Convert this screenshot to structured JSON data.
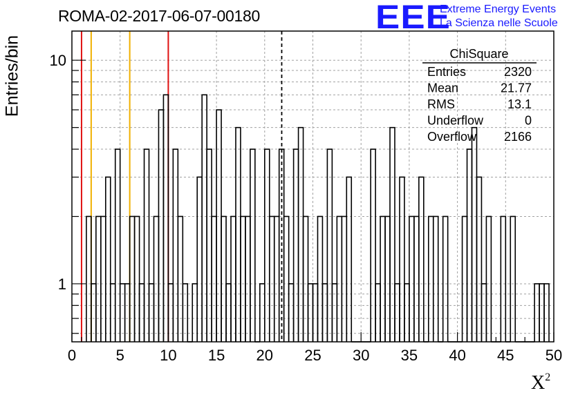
{
  "header": {
    "run_title": "ROMA-02-2017-06-07-00180",
    "logo_text": "EEE",
    "tagline_1": "Extreme Energy Events",
    "tagline_2": "La Scienza nelle Scuole"
  },
  "stats_box": {
    "name": "ChiSquare",
    "rows": [
      {
        "label": "Entries",
        "value": "2320"
      },
      {
        "label": "Mean",
        "value": "21.77"
      },
      {
        "label": "RMS",
        "value": "13.1"
      },
      {
        "label": "Underflow",
        "value": "0"
      },
      {
        "label": "Overflow",
        "value": "2166"
      }
    ]
  },
  "chart_data": {
    "type": "histogram",
    "xlabel": "X",
    "xlabel_superscript": "2",
    "ylabel": "Entries/bin",
    "xlim": [
      0,
      50
    ],
    "ylim": [
      0.55,
      13.5
    ],
    "yscale": "log",
    "grid": true,
    "legend_position": "top-right",
    "bin_width": 0.5,
    "x_ticks": [
      "0",
      "5",
      "10",
      "15",
      "20",
      "25",
      "30",
      "35",
      "40",
      "45",
      "50"
    ],
    "y_ticks": [
      "1",
      "10"
    ],
    "bins": [
      {
        "x": 1.5,
        "y": 2
      },
      {
        "x": 2.0,
        "y": 1
      },
      {
        "x": 2.5,
        "y": 2
      },
      {
        "x": 3.0,
        "y": 2
      },
      {
        "x": 3.5,
        "y": 3
      },
      {
        "x": 4.0,
        "y": 1
      },
      {
        "x": 4.5,
        "y": 4
      },
      {
        "x": 5.0,
        "y": 1
      },
      {
        "x": 5.5,
        "y": 1
      },
      {
        "x": 6.0,
        "y": 2
      },
      {
        "x": 6.5,
        "y": 2
      },
      {
        "x": 7.0,
        "y": 1
      },
      {
        "x": 7.5,
        "y": 4
      },
      {
        "x": 8.0,
        "y": 1
      },
      {
        "x": 8.5,
        "y": 2
      },
      {
        "x": 9.0,
        "y": 6
      },
      {
        "x": 9.5,
        "y": 7
      },
      {
        "x": 10.0,
        "y": 1
      },
      {
        "x": 10.5,
        "y": 4
      },
      {
        "x": 11.0,
        "y": 2
      },
      {
        "x": 11.5,
        "y": 1
      },
      {
        "x": 12.0,
        "y": 0.55
      },
      {
        "x": 12.5,
        "y": 1
      },
      {
        "x": 13.0,
        "y": 3
      },
      {
        "x": 13.5,
        "y": 7
      },
      {
        "x": 14.0,
        "y": 4
      },
      {
        "x": 14.5,
        "y": 2
      },
      {
        "x": 15.0,
        "y": 6
      },
      {
        "x": 15.5,
        "y": 2
      },
      {
        "x": 16.0,
        "y": 1
      },
      {
        "x": 16.5,
        "y": 2
      },
      {
        "x": 17.0,
        "y": 5
      },
      {
        "x": 17.5,
        "y": 2
      },
      {
        "x": 18.0,
        "y": 2
      },
      {
        "x": 18.5,
        "y": 4
      },
      {
        "x": 19.0,
        "y": 0.55
      },
      {
        "x": 19.5,
        "y": 1
      },
      {
        "x": 20.0,
        "y": 4
      },
      {
        "x": 20.5,
        "y": 2
      },
      {
        "x": 21.0,
        "y": 2
      },
      {
        "x": 21.5,
        "y": 4
      },
      {
        "x": 22.0,
        "y": 2
      },
      {
        "x": 22.5,
        "y": 1
      },
      {
        "x": 23.0,
        "y": 4
      },
      {
        "x": 23.5,
        "y": 5
      },
      {
        "x": 24.0,
        "y": 2
      },
      {
        "x": 24.5,
        "y": 1
      },
      {
        "x": 25.0,
        "y": 1
      },
      {
        "x": 25.5,
        "y": 2
      },
      {
        "x": 26.0,
        "y": 1
      },
      {
        "x": 26.5,
        "y": 4
      },
      {
        "x": 27.0,
        "y": 1
      },
      {
        "x": 27.5,
        "y": 2
      },
      {
        "x": 28.0,
        "y": 2
      },
      {
        "x": 28.5,
        "y": 3
      },
      {
        "x": 29.0,
        "y": 0.55
      },
      {
        "x": 29.5,
        "y": 0.55
      },
      {
        "x": 30.0,
        "y": 0.55
      },
      {
        "x": 30.5,
        "y": 0.55
      },
      {
        "x": 31.0,
        "y": 4
      },
      {
        "x": 31.5,
        "y": 1
      },
      {
        "x": 32.0,
        "y": 2
      },
      {
        "x": 32.5,
        "y": 2
      },
      {
        "x": 33.0,
        "y": 5
      },
      {
        "x": 33.5,
        "y": 1
      },
      {
        "x": 34.0,
        "y": 3
      },
      {
        "x": 34.5,
        "y": 1
      },
      {
        "x": 35.0,
        "y": 2
      },
      {
        "x": 35.5,
        "y": 2
      },
      {
        "x": 36.0,
        "y": 3
      },
      {
        "x": 36.5,
        "y": 0.55
      },
      {
        "x": 37.0,
        "y": 2
      },
      {
        "x": 37.5,
        "y": 2
      },
      {
        "x": 38.0,
        "y": 0.55
      },
      {
        "x": 38.5,
        "y": 2
      },
      {
        "x": 39.0,
        "y": 0.55
      },
      {
        "x": 39.5,
        "y": 0.55
      },
      {
        "x": 40.0,
        "y": 0.55
      },
      {
        "x": 40.5,
        "y": 2
      },
      {
        "x": 41.0,
        "y": 4
      },
      {
        "x": 41.5,
        "y": 5
      },
      {
        "x": 42.0,
        "y": 3
      },
      {
        "x": 42.5,
        "y": 1
      },
      {
        "x": 43.0,
        "y": 2
      },
      {
        "x": 43.5,
        "y": 0.55
      },
      {
        "x": 44.0,
        "y": 0.55
      },
      {
        "x": 44.5,
        "y": 2
      },
      {
        "x": 45.0,
        "y": 0.55
      },
      {
        "x": 45.5,
        "y": 2
      },
      {
        "x": 46.0,
        "y": 0.55
      },
      {
        "x": 46.5,
        "y": 0.55
      },
      {
        "x": 47.0,
        "y": 0.55
      },
      {
        "x": 47.5,
        "y": 0.55
      },
      {
        "x": 48.0,
        "y": 1
      },
      {
        "x": 48.5,
        "y": 1
      },
      {
        "x": 49.0,
        "y": 1
      }
    ],
    "reference_lines": [
      {
        "x": 1,
        "color": "#e01010",
        "style": "solid"
      },
      {
        "x": 2,
        "color": "#f0b000",
        "style": "solid"
      },
      {
        "x": 6,
        "color": "#f0b000",
        "style": "solid"
      },
      {
        "x": 10,
        "color": "#e01010",
        "style": "solid"
      },
      {
        "x": 21.77,
        "color": "#000000",
        "style": "dashed"
      }
    ]
  }
}
